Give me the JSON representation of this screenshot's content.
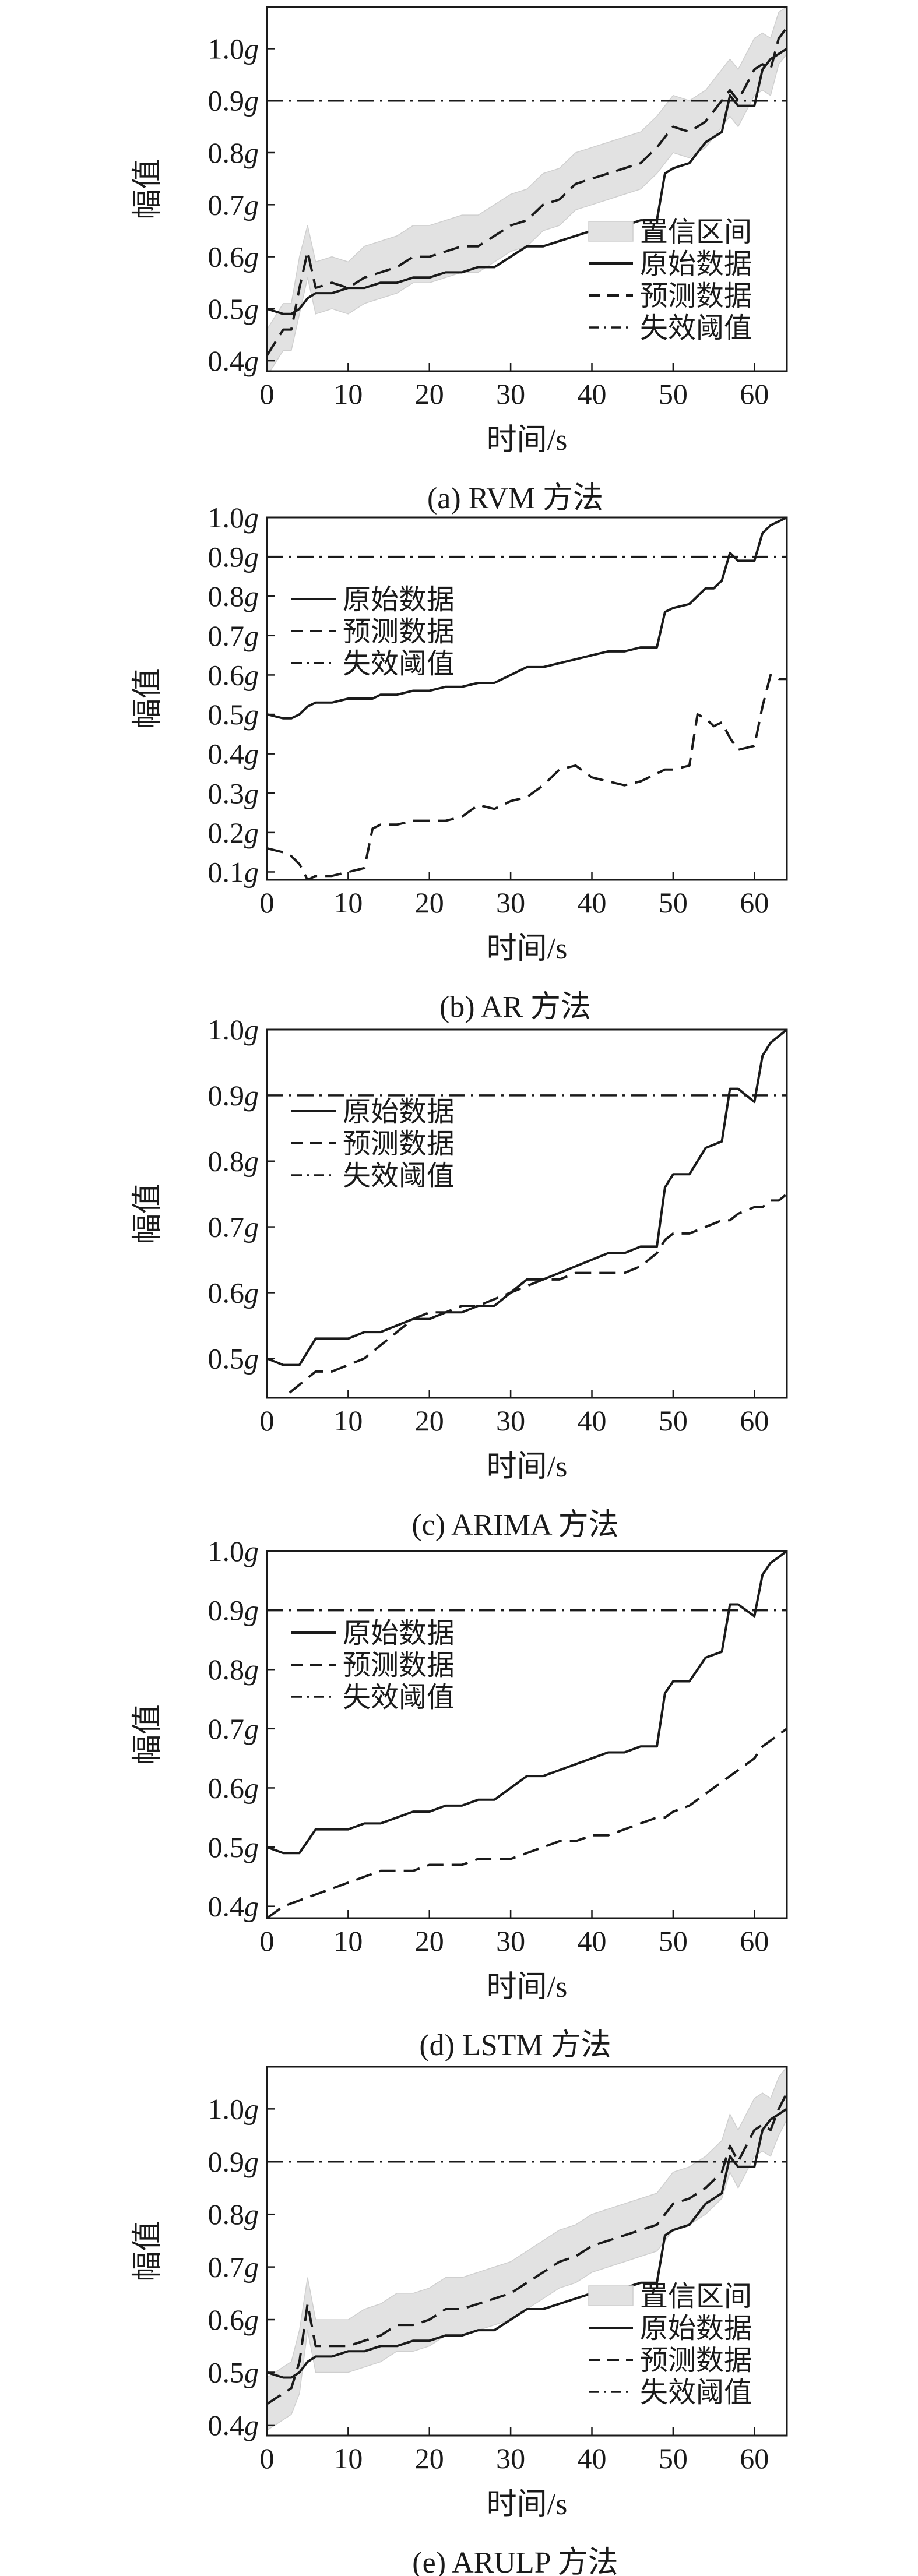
{
  "chart_data": [
    {
      "type": "line",
      "caption": "(a) RVM 方法",
      "xlabel": "时间/s",
      "ylabel": "幅值",
      "xlim": [
        0,
        64
      ],
      "ylim": [
        0.38,
        1.08
      ],
      "xticks": [
        "0",
        "10",
        "20",
        "30",
        "40",
        "50",
        "60"
      ],
      "yticks": [
        "0.4g",
        "0.5g",
        "0.6g",
        "0.7g",
        "0.8g",
        "0.9g",
        "1.0g"
      ],
      "legend_position": "bottom-right",
      "threshold": 0.9,
      "legend": [
        {
          "key": "band",
          "label": "置信区间"
        },
        {
          "key": "orig",
          "label": "原始数据"
        },
        {
          "key": "pred",
          "label": "预测数据"
        },
        {
          "key": "thr",
          "label": "失效阈值"
        }
      ],
      "x": [
        0,
        2,
        3,
        4,
        5,
        6,
        8,
        10,
        12,
        14,
        16,
        18,
        20,
        22,
        24,
        26,
        28,
        30,
        32,
        34,
        36,
        38,
        40,
        42,
        44,
        46,
        48,
        49,
        50,
        52,
        54,
        56,
        57,
        58,
        60,
        61,
        62,
        63,
        64
      ],
      "series": [
        {
          "key": "orig",
          "name": "原始数据",
          "style": "solid",
          "values": [
            0.5,
            0.49,
            0.49,
            0.5,
            0.52,
            0.53,
            0.53,
            0.54,
            0.54,
            0.55,
            0.55,
            0.56,
            0.56,
            0.57,
            0.57,
            0.58,
            0.58,
            0.6,
            0.62,
            0.62,
            0.63,
            0.64,
            0.65,
            0.66,
            0.66,
            0.67,
            0.67,
            0.76,
            0.77,
            0.78,
            0.82,
            0.84,
            0.91,
            0.89,
            0.89,
            0.96,
            0.98,
            0.99,
            1.0
          ]
        },
        {
          "key": "pred",
          "name": "预测数据",
          "style": "dashed",
          "values": [
            0.41,
            0.46,
            0.46,
            0.54,
            0.61,
            0.54,
            0.55,
            0.54,
            0.56,
            0.57,
            0.58,
            0.6,
            0.6,
            0.61,
            0.62,
            0.62,
            0.64,
            0.66,
            0.67,
            0.7,
            0.71,
            0.74,
            0.75,
            0.76,
            0.77,
            0.78,
            0.81,
            0.83,
            0.85,
            0.84,
            0.86,
            0.9,
            0.92,
            0.9,
            0.96,
            0.97,
            0.96,
            1.02,
            1.04
          ]
        },
        {
          "key": "band_upper",
          "name": "置信区间",
          "style": "band",
          "values": [
            0.46,
            0.51,
            0.51,
            0.6,
            0.66,
            0.59,
            0.6,
            0.59,
            0.62,
            0.63,
            0.64,
            0.66,
            0.66,
            0.67,
            0.68,
            0.68,
            0.7,
            0.72,
            0.73,
            0.76,
            0.77,
            0.8,
            0.81,
            0.82,
            0.83,
            0.84,
            0.87,
            0.89,
            0.91,
            0.9,
            0.92,
            0.96,
            0.98,
            0.96,
            1.02,
            1.03,
            1.02,
            1.07,
            1.08
          ]
        },
        {
          "key": "band_lower",
          "name": "置信区间",
          "style": "band",
          "values": [
            0.37,
            0.42,
            0.42,
            0.49,
            0.56,
            0.49,
            0.5,
            0.49,
            0.51,
            0.52,
            0.53,
            0.55,
            0.55,
            0.56,
            0.57,
            0.57,
            0.59,
            0.61,
            0.62,
            0.65,
            0.66,
            0.69,
            0.7,
            0.71,
            0.72,
            0.73,
            0.76,
            0.78,
            0.8,
            0.79,
            0.81,
            0.85,
            0.87,
            0.85,
            0.91,
            0.92,
            0.91,
            0.97,
            0.99
          ]
        }
      ]
    },
    {
      "type": "line",
      "caption": "(b) AR 方法",
      "xlabel": "时间/s",
      "ylabel": "幅值",
      "xlim": [
        0,
        64
      ],
      "ylim": [
        0.08,
        1.0
      ],
      "xticks": [
        "0",
        "10",
        "20",
        "30",
        "40",
        "50",
        "60"
      ],
      "yticks": [
        "0.1g",
        "0.2g",
        "0.3g",
        "0.4g",
        "0.5g",
        "0.6g",
        "0.7g",
        "0.8g",
        "0.9g",
        "1.0g"
      ],
      "legend_position": "top-left",
      "threshold": 0.9,
      "legend": [
        {
          "key": "orig",
          "label": "原始数据"
        },
        {
          "key": "pred",
          "label": "预测数据"
        },
        {
          "key": "thr",
          "label": "失效阈值"
        }
      ],
      "x": [
        0,
        2,
        3,
        4,
        5,
        6,
        8,
        10,
        12,
        13,
        14,
        16,
        18,
        20,
        22,
        24,
        26,
        28,
        30,
        32,
        34,
        36,
        38,
        40,
        42,
        44,
        46,
        48,
        49,
        50,
        52,
        53,
        54,
        55,
        56,
        57,
        58,
        60,
        61,
        62,
        63,
        64
      ],
      "series": [
        {
          "key": "orig",
          "name": "原始数据",
          "style": "solid",
          "values": [
            0.5,
            0.49,
            0.49,
            0.5,
            0.52,
            0.53,
            0.53,
            0.54,
            0.54,
            0.54,
            0.55,
            0.55,
            0.56,
            0.56,
            0.57,
            0.57,
            0.58,
            0.58,
            0.6,
            0.62,
            0.62,
            0.63,
            0.64,
            0.65,
            0.66,
            0.66,
            0.67,
            0.67,
            0.76,
            0.77,
            0.78,
            0.8,
            0.82,
            0.82,
            0.84,
            0.91,
            0.89,
            0.89,
            0.96,
            0.98,
            0.99,
            1.0
          ]
        },
        {
          "key": "pred",
          "name": "预测数据",
          "style": "dashed",
          "values": [
            0.16,
            0.15,
            0.14,
            0.12,
            0.08,
            0.09,
            0.09,
            0.1,
            0.11,
            0.21,
            0.22,
            0.22,
            0.23,
            0.23,
            0.23,
            0.24,
            0.27,
            0.26,
            0.28,
            0.29,
            0.32,
            0.36,
            0.37,
            0.34,
            0.33,
            0.32,
            0.33,
            0.35,
            0.36,
            0.36,
            0.37,
            0.5,
            0.49,
            0.47,
            0.48,
            0.44,
            0.41,
            0.42,
            0.52,
            0.6,
            0.59,
            0.59
          ]
        }
      ]
    },
    {
      "type": "line",
      "caption": "(c) ARIMA 方法",
      "xlabel": "时间/s",
      "ylabel": "幅值",
      "xlim": [
        0,
        64
      ],
      "ylim": [
        0.44,
        1.0
      ],
      "xticks": [
        "0",
        "10",
        "20",
        "30",
        "40",
        "50",
        "60"
      ],
      "yticks": [
        "0.5g",
        "0.6g",
        "0.7g",
        "0.8g",
        "0.9g",
        "1.0g"
      ],
      "legend_position": "top-left",
      "threshold": 0.9,
      "legend": [
        {
          "key": "orig",
          "label": "原始数据"
        },
        {
          "key": "pred",
          "label": "预测数据"
        },
        {
          "key": "thr",
          "label": "失效阈值"
        }
      ],
      "x": [
        0,
        2,
        4,
        6,
        8,
        10,
        12,
        14,
        16,
        18,
        20,
        22,
        24,
        26,
        28,
        30,
        32,
        34,
        36,
        38,
        40,
        42,
        44,
        46,
        48,
        49,
        50,
        52,
        54,
        56,
        57,
        58,
        60,
        61,
        62,
        63,
        64
      ],
      "series": [
        {
          "key": "orig",
          "name": "原始数据",
          "style": "solid",
          "values": [
            0.5,
            0.49,
            0.49,
            0.53,
            0.53,
            0.53,
            0.54,
            0.54,
            0.55,
            0.56,
            0.56,
            0.57,
            0.57,
            0.58,
            0.58,
            0.6,
            0.62,
            0.62,
            0.63,
            0.64,
            0.65,
            0.66,
            0.66,
            0.67,
            0.67,
            0.76,
            0.78,
            0.78,
            0.82,
            0.83,
            0.91,
            0.91,
            0.89,
            0.96,
            0.98,
            0.99,
            1.0
          ]
        },
        {
          "key": "pred",
          "name": "预测数据",
          "style": "dashed",
          "values": [
            0.44,
            0.44,
            0.46,
            0.48,
            0.48,
            0.49,
            0.5,
            0.52,
            0.54,
            0.56,
            0.57,
            0.57,
            0.58,
            0.58,
            0.59,
            0.6,
            0.61,
            0.62,
            0.62,
            0.63,
            0.63,
            0.63,
            0.63,
            0.64,
            0.66,
            0.68,
            0.69,
            0.69,
            0.7,
            0.71,
            0.71,
            0.72,
            0.73,
            0.73,
            0.74,
            0.74,
            0.75
          ]
        }
      ]
    },
    {
      "type": "line",
      "caption": "(d) LSTM 方法",
      "xlabel": "时间/s",
      "ylabel": "幅值",
      "xlim": [
        0,
        64
      ],
      "ylim": [
        0.38,
        1.0
      ],
      "xticks": [
        "0",
        "10",
        "20",
        "30",
        "40",
        "50",
        "60"
      ],
      "yticks": [
        "0.4g",
        "0.5g",
        "0.6g",
        "0.7g",
        "0.8g",
        "0.9g",
        "1.0g"
      ],
      "legend_position": "top-left",
      "threshold": 0.9,
      "legend": [
        {
          "key": "orig",
          "label": "原始数据"
        },
        {
          "key": "pred",
          "label": "预测数据"
        },
        {
          "key": "thr",
          "label": "失效阈值"
        }
      ],
      "x": [
        0,
        2,
        4,
        6,
        8,
        10,
        12,
        14,
        16,
        18,
        20,
        22,
        24,
        26,
        28,
        30,
        32,
        34,
        36,
        38,
        40,
        42,
        44,
        46,
        48,
        49,
        50,
        52,
        54,
        56,
        57,
        58,
        60,
        61,
        62,
        63,
        64
      ],
      "series": [
        {
          "key": "orig",
          "name": "原始数据",
          "style": "solid",
          "values": [
            0.5,
            0.49,
            0.49,
            0.53,
            0.53,
            0.53,
            0.54,
            0.54,
            0.55,
            0.56,
            0.56,
            0.57,
            0.57,
            0.58,
            0.58,
            0.6,
            0.62,
            0.62,
            0.63,
            0.64,
            0.65,
            0.66,
            0.66,
            0.67,
            0.67,
            0.76,
            0.78,
            0.78,
            0.82,
            0.83,
            0.91,
            0.91,
            0.89,
            0.96,
            0.98,
            0.99,
            1.0
          ]
        },
        {
          "key": "pred",
          "name": "预测数据",
          "style": "dashed",
          "values": [
            0.38,
            0.4,
            0.41,
            0.42,
            0.43,
            0.44,
            0.45,
            0.46,
            0.46,
            0.46,
            0.47,
            0.47,
            0.47,
            0.48,
            0.48,
            0.48,
            0.49,
            0.5,
            0.51,
            0.51,
            0.52,
            0.52,
            0.53,
            0.54,
            0.55,
            0.55,
            0.56,
            0.57,
            0.59,
            0.61,
            0.62,
            0.63,
            0.65,
            0.67,
            0.68,
            0.69,
            0.7
          ]
        }
      ]
    },
    {
      "type": "line",
      "caption": "(e) ARULP 方法",
      "xlabel": "时间/s",
      "ylabel": "幅值",
      "xlim": [
        0,
        64
      ],
      "ylim": [
        0.38,
        1.08
      ],
      "xticks": [
        "0",
        "10",
        "20",
        "30",
        "40",
        "50",
        "60"
      ],
      "yticks": [
        "0.4g",
        "0.5g",
        "0.6g",
        "0.7g",
        "0.8g",
        "0.9g",
        "1.0g"
      ],
      "legend_position": "bottom-right",
      "threshold": 0.9,
      "legend": [
        {
          "key": "band",
          "label": "置信区间"
        },
        {
          "key": "orig",
          "label": "原始数据"
        },
        {
          "key": "pred",
          "label": "预测数据"
        },
        {
          "key": "thr",
          "label": "失效阈值"
        }
      ],
      "x": [
        0,
        2,
        3,
        4,
        5,
        6,
        8,
        10,
        12,
        14,
        16,
        18,
        20,
        22,
        24,
        26,
        28,
        30,
        32,
        34,
        36,
        38,
        40,
        42,
        44,
        46,
        48,
        49,
        50,
        52,
        54,
        56,
        57,
        58,
        60,
        61,
        62,
        63,
        64
      ],
      "series": [
        {
          "key": "orig",
          "name": "原始数据",
          "style": "solid",
          "values": [
            0.5,
            0.49,
            0.49,
            0.5,
            0.52,
            0.53,
            0.53,
            0.54,
            0.54,
            0.55,
            0.55,
            0.56,
            0.56,
            0.57,
            0.57,
            0.58,
            0.58,
            0.6,
            0.62,
            0.62,
            0.63,
            0.64,
            0.65,
            0.66,
            0.66,
            0.67,
            0.67,
            0.76,
            0.77,
            0.78,
            0.82,
            0.84,
            0.91,
            0.89,
            0.89,
            0.96,
            0.98,
            0.99,
            1.0
          ]
        },
        {
          "key": "pred",
          "name": "预测数据",
          "style": "dashed",
          "values": [
            0.44,
            0.46,
            0.47,
            0.52,
            0.63,
            0.55,
            0.55,
            0.55,
            0.56,
            0.57,
            0.59,
            0.59,
            0.6,
            0.62,
            0.62,
            0.63,
            0.64,
            0.65,
            0.67,
            0.69,
            0.71,
            0.72,
            0.74,
            0.75,
            0.76,
            0.77,
            0.78,
            0.8,
            0.82,
            0.83,
            0.85,
            0.88,
            0.93,
            0.9,
            0.96,
            0.97,
            0.96,
            1.0,
            1.03
          ]
        },
        {
          "key": "band_upper",
          "name": "置信区间",
          "style": "band",
          "values": [
            0.49,
            0.51,
            0.52,
            0.58,
            0.68,
            0.6,
            0.6,
            0.6,
            0.62,
            0.63,
            0.65,
            0.65,
            0.66,
            0.68,
            0.68,
            0.69,
            0.7,
            0.71,
            0.73,
            0.75,
            0.77,
            0.78,
            0.8,
            0.81,
            0.82,
            0.83,
            0.84,
            0.86,
            0.88,
            0.89,
            0.91,
            0.94,
            0.99,
            0.96,
            1.02,
            1.03,
            1.02,
            1.06,
            1.08
          ]
        },
        {
          "key": "band_lower",
          "name": "置信区间",
          "style": "band",
          "values": [
            0.39,
            0.41,
            0.42,
            0.46,
            0.58,
            0.5,
            0.5,
            0.5,
            0.51,
            0.52,
            0.54,
            0.54,
            0.55,
            0.57,
            0.57,
            0.58,
            0.59,
            0.6,
            0.62,
            0.64,
            0.66,
            0.67,
            0.69,
            0.7,
            0.71,
            0.72,
            0.73,
            0.75,
            0.77,
            0.78,
            0.8,
            0.83,
            0.88,
            0.85,
            0.91,
            0.92,
            0.91,
            0.95,
            0.98
          ]
        }
      ]
    }
  ]
}
